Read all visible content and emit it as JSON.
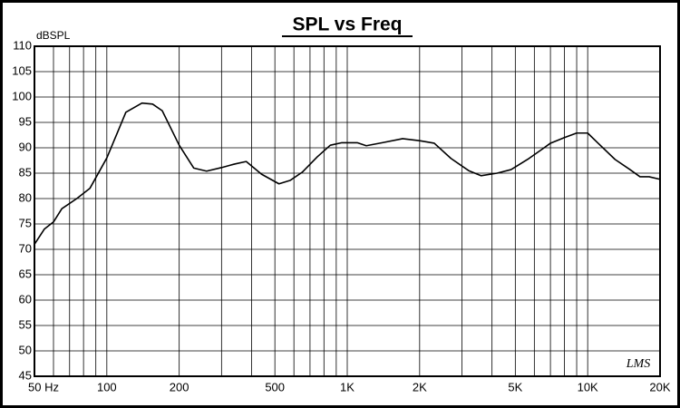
{
  "chart_data": {
    "type": "line",
    "title": "SPL vs Freq",
    "ylabel": "dBSPL",
    "annotation": "LMS",
    "xscale": "log",
    "grid": true,
    "xlim": [
      50,
      20000
    ],
    "ylim": [
      45,
      110
    ],
    "xticks": [
      {
        "value": 50,
        "label": "50 Hz"
      },
      100,
      200,
      500,
      {
        "value": 1000,
        "label": "1K"
      },
      {
        "value": 2000,
        "label": "2K"
      },
      {
        "value": 5000,
        "label": "5K"
      },
      {
        "value": 10000,
        "label": "10K"
      },
      {
        "value": 20000,
        "label": "20K"
      }
    ],
    "xgrid": [
      60,
      70,
      80,
      90,
      300,
      400,
      600,
      700,
      800,
      900,
      3000,
      4000,
      6000,
      7000,
      8000,
      9000
    ],
    "yticks": [
      45,
      50,
      55,
      60,
      65,
      70,
      75,
      80,
      85,
      90,
      95,
      100,
      105,
      110
    ],
    "color": "#000000",
    "x": [
      50,
      55,
      60,
      65,
      75,
      85,
      100,
      110,
      120,
      140,
      155,
      170,
      200,
      230,
      260,
      300,
      340,
      380,
      440,
      520,
      580,
      650,
      750,
      850,
      950,
      1100,
      1200,
      1400,
      1700,
      2000,
      2300,
      2700,
      3200,
      3600,
      4200,
      4800,
      5700,
      6500,
      7000,
      8000,
      9000,
      10000,
      11000,
      13000,
      15000,
      16500,
      18000,
      20000
    ],
    "values": [
      71,
      74,
      75.4,
      78,
      80,
      82,
      88,
      92.7,
      97,
      98.8,
      98.6,
      97.3,
      90.5,
      86,
      85.4,
      86.1,
      86.8,
      87.3,
      84.8,
      82.9,
      83.6,
      85.2,
      88.2,
      90.5,
      91,
      91,
      90.4,
      91,
      91.8,
      91.4,
      90.9,
      87.9,
      85.5,
      84.5,
      85,
      85.7,
      87.9,
      89.8,
      90.9,
      92,
      92.9,
      92.9,
      91,
      87.7,
      85.7,
      84.3,
      84.3,
      83.8
    ]
  }
}
